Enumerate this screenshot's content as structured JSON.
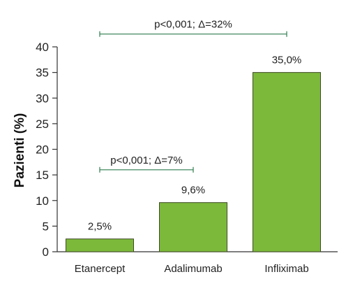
{
  "chart_data": {
    "type": "bar",
    "categories": [
      "Etanercept",
      "Adalimumab",
      "Infliximab"
    ],
    "values": [
      2.5,
      9.6,
      35.0
    ],
    "data_labels": [
      "2,5%",
      "9,6%",
      "35,0%"
    ],
    "ylabel": "Pazienti (%)",
    "xlabel": "",
    "ylim": [
      0,
      40
    ],
    "yticks": [
      0,
      5,
      10,
      15,
      20,
      25,
      30,
      35,
      40
    ],
    "grid": false,
    "bar_color": "#7cb93a",
    "bar_edge_color": "#3f4a26",
    "annotation_color": "#2e7d4f",
    "annotations": [
      {
        "text": "p<0,001; Δ=7%",
        "from": "Etanercept",
        "to": "Adalimumab",
        "y": 16
      },
      {
        "text": "p<0,001; Δ=32%",
        "from": "Etanercept",
        "to": "Infliximab",
        "y": 42.5
      }
    ]
  }
}
